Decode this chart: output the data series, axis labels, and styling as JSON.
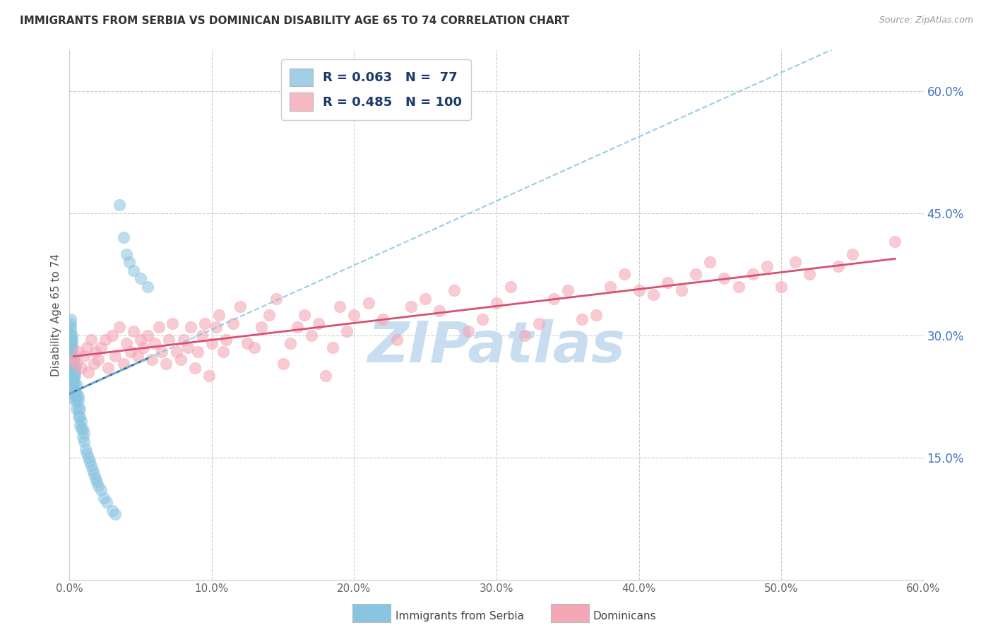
{
  "title": "IMMIGRANTS FROM SERBIA VS DOMINICAN DISABILITY AGE 65 TO 74 CORRELATION CHART",
  "source": "Source: ZipAtlas.com",
  "ylabel": "Disability Age 65 to 74",
  "xlim": [
    0.0,
    0.6
  ],
  "ylim": [
    0.0,
    0.65
  ],
  "xticks": [
    0.0,
    0.1,
    0.2,
    0.3,
    0.4,
    0.5,
    0.6
  ],
  "yticks": [
    0.15,
    0.3,
    0.45,
    0.6
  ],
  "xtick_labels": [
    "0.0%",
    "10.0%",
    "20.0%",
    "30.0%",
    "40.0%",
    "50.0%",
    "60.0%"
  ],
  "ytick_labels": [
    "15.0%",
    "30.0%",
    "45.0%",
    "60.0%"
  ],
  "serbia_R": 0.063,
  "serbia_N": 77,
  "dominican_R": 0.485,
  "dominican_N": 100,
  "serbia_color": "#89c4e1",
  "dominican_color": "#f4a7b4",
  "serbia_trend_color": "#2566a8",
  "dominican_trend_color": "#d94f72",
  "serbia_trend_dash_color": "#89c4e1",
  "watermark": "ZIPatlas",
  "watermark_color": "#c8ddf0",
  "legend_label1": "Immigrants from Serbia",
  "legend_label2": "Dominicans",
  "serbia_x": [
    0.001,
    0.001,
    0.001,
    0.001,
    0.001,
    0.001,
    0.001,
    0.001,
    0.001,
    0.001,
    0.002,
    0.002,
    0.002,
    0.002,
    0.002,
    0.002,
    0.002,
    0.002,
    0.002,
    0.002,
    0.002,
    0.002,
    0.003,
    0.003,
    0.003,
    0.003,
    0.003,
    0.003,
    0.003,
    0.003,
    0.004,
    0.004,
    0.004,
    0.004,
    0.004,
    0.004,
    0.004,
    0.005,
    0.005,
    0.005,
    0.005,
    0.005,
    0.006,
    0.006,
    0.006,
    0.006,
    0.007,
    0.007,
    0.007,
    0.008,
    0.008,
    0.009,
    0.009,
    0.01,
    0.01,
    0.011,
    0.012,
    0.013,
    0.014,
    0.015,
    0.016,
    0.017,
    0.018,
    0.019,
    0.02,
    0.022,
    0.024,
    0.026,
    0.03,
    0.032,
    0.035,
    0.038,
    0.04,
    0.042,
    0.045,
    0.05,
    0.055
  ],
  "serbia_y": [
    0.27,
    0.28,
    0.285,
    0.29,
    0.295,
    0.3,
    0.305,
    0.31,
    0.315,
    0.32,
    0.24,
    0.25,
    0.255,
    0.26,
    0.265,
    0.27,
    0.275,
    0.28,
    0.285,
    0.29,
    0.295,
    0.3,
    0.23,
    0.24,
    0.245,
    0.25,
    0.255,
    0.26,
    0.265,
    0.27,
    0.22,
    0.225,
    0.23,
    0.24,
    0.25,
    0.255,
    0.26,
    0.21,
    0.22,
    0.225,
    0.23,
    0.24,
    0.2,
    0.21,
    0.22,
    0.225,
    0.19,
    0.2,
    0.21,
    0.185,
    0.195,
    0.175,
    0.185,
    0.17,
    0.18,
    0.16,
    0.155,
    0.15,
    0.145,
    0.14,
    0.135,
    0.13,
    0.125,
    0.12,
    0.115,
    0.11,
    0.1,
    0.095,
    0.085,
    0.08,
    0.46,
    0.42,
    0.4,
    0.39,
    0.38,
    0.37,
    0.36
  ],
  "dominican_x": [
    0.003,
    0.005,
    0.006,
    0.008,
    0.01,
    0.012,
    0.013,
    0.015,
    0.017,
    0.018,
    0.02,
    0.022,
    0.025,
    0.027,
    0.03,
    0.032,
    0.035,
    0.038,
    0.04,
    0.043,
    0.045,
    0.048,
    0.05,
    0.052,
    0.055,
    0.058,
    0.06,
    0.063,
    0.065,
    0.068,
    0.07,
    0.072,
    0.075,
    0.078,
    0.08,
    0.083,
    0.085,
    0.088,
    0.09,
    0.093,
    0.095,
    0.098,
    0.1,
    0.103,
    0.105,
    0.108,
    0.11,
    0.115,
    0.12,
    0.125,
    0.13,
    0.135,
    0.14,
    0.145,
    0.15,
    0.155,
    0.16,
    0.165,
    0.17,
    0.175,
    0.18,
    0.185,
    0.19,
    0.195,
    0.2,
    0.21,
    0.22,
    0.23,
    0.24,
    0.25,
    0.26,
    0.27,
    0.28,
    0.29,
    0.3,
    0.31,
    0.32,
    0.33,
    0.34,
    0.35,
    0.36,
    0.37,
    0.38,
    0.39,
    0.4,
    0.41,
    0.42,
    0.43,
    0.44,
    0.45,
    0.46,
    0.47,
    0.48,
    0.49,
    0.5,
    0.51,
    0.52,
    0.54,
    0.55,
    0.58
  ],
  "dominican_y": [
    0.27,
    0.265,
    0.28,
    0.26,
    0.275,
    0.285,
    0.255,
    0.295,
    0.265,
    0.28,
    0.27,
    0.285,
    0.295,
    0.26,
    0.3,
    0.275,
    0.31,
    0.265,
    0.29,
    0.28,
    0.305,
    0.275,
    0.295,
    0.285,
    0.3,
    0.27,
    0.29,
    0.31,
    0.28,
    0.265,
    0.295,
    0.315,
    0.28,
    0.27,
    0.295,
    0.285,
    0.31,
    0.26,
    0.28,
    0.3,
    0.315,
    0.25,
    0.29,
    0.31,
    0.325,
    0.28,
    0.295,
    0.315,
    0.335,
    0.29,
    0.285,
    0.31,
    0.325,
    0.345,
    0.265,
    0.29,
    0.31,
    0.325,
    0.3,
    0.315,
    0.25,
    0.285,
    0.335,
    0.305,
    0.325,
    0.34,
    0.32,
    0.295,
    0.335,
    0.345,
    0.33,
    0.355,
    0.305,
    0.32,
    0.34,
    0.36,
    0.3,
    0.315,
    0.345,
    0.355,
    0.32,
    0.325,
    0.36,
    0.375,
    0.355,
    0.35,
    0.365,
    0.355,
    0.375,
    0.39,
    0.37,
    0.36,
    0.375,
    0.385,
    0.36,
    0.39,
    0.375,
    0.385,
    0.4,
    0.415
  ]
}
